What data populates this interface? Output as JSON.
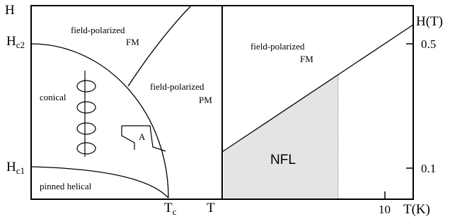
{
  "left_panel": {
    "y_axis": {
      "label": "H",
      "hc2": {
        "label": "H",
        "subscript": "c2"
      },
      "hc1": {
        "label": "H",
        "subscript": "c1"
      }
    },
    "x_axis": {
      "tc": {
        "label": "T",
        "subscript": "c"
      },
      "label": "T"
    },
    "regions": {
      "fm": [
        "field-polarized",
        "FM"
      ],
      "pm": [
        "field-polarized",
        "PM"
      ],
      "conical": "conical",
      "a_phase": "A",
      "pinned": "pinned helical"
    }
  },
  "right_panel": {
    "y_axis": {
      "label": "H(T)",
      "ticks": [
        "0.5",
        "0.1"
      ]
    },
    "x_axis": {
      "label": "T(K)",
      "ticks": [
        "10"
      ]
    },
    "regions": {
      "fm": [
        "field-polarized",
        "FM"
      ],
      "nfl": "NFL"
    }
  }
}
